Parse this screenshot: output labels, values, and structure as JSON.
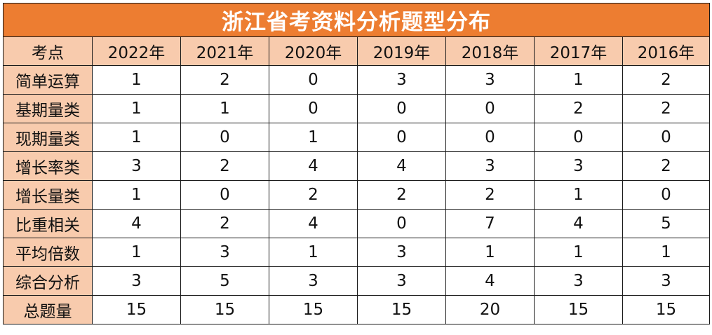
{
  "title": "浙江省考资料分析题型分布",
  "corner_label": "考点",
  "colors": {
    "title_bg": "#ed7d31",
    "title_text": "#ffffff",
    "header_bg": "#f8cbad",
    "border": "#1a1a1a"
  },
  "years": [
    "2022年",
    "2021年",
    "2020年",
    "2019年",
    "2018年",
    "2017年",
    "2016年"
  ],
  "rows": [
    {
      "label": "简单运算",
      "values": [
        "1",
        "2",
        "0",
        "3",
        "3",
        "1",
        "2"
      ]
    },
    {
      "label": "基期量类",
      "values": [
        "1",
        "1",
        "0",
        "0",
        "0",
        "2",
        "2"
      ]
    },
    {
      "label": "现期量类",
      "values": [
        "1",
        "0",
        "1",
        "0",
        "0",
        "0",
        "0"
      ]
    },
    {
      "label": "增长率类",
      "values": [
        "3",
        "2",
        "4",
        "4",
        "3",
        "3",
        "2"
      ]
    },
    {
      "label": "增长量类",
      "values": [
        "1",
        "0",
        "2",
        "2",
        "2",
        "1",
        "0"
      ]
    },
    {
      "label": "比重相关",
      "values": [
        "4",
        "2",
        "4",
        "0",
        "7",
        "4",
        "5"
      ]
    },
    {
      "label": "平均倍数",
      "values": [
        "1",
        "3",
        "1",
        "3",
        "1",
        "1",
        "1"
      ]
    },
    {
      "label": "综合分析",
      "values": [
        "3",
        "5",
        "3",
        "3",
        "4",
        "3",
        "3"
      ]
    },
    {
      "label": "总题量",
      "values": [
        "15",
        "15",
        "15",
        "15",
        "20",
        "15",
        "15"
      ]
    }
  ]
}
